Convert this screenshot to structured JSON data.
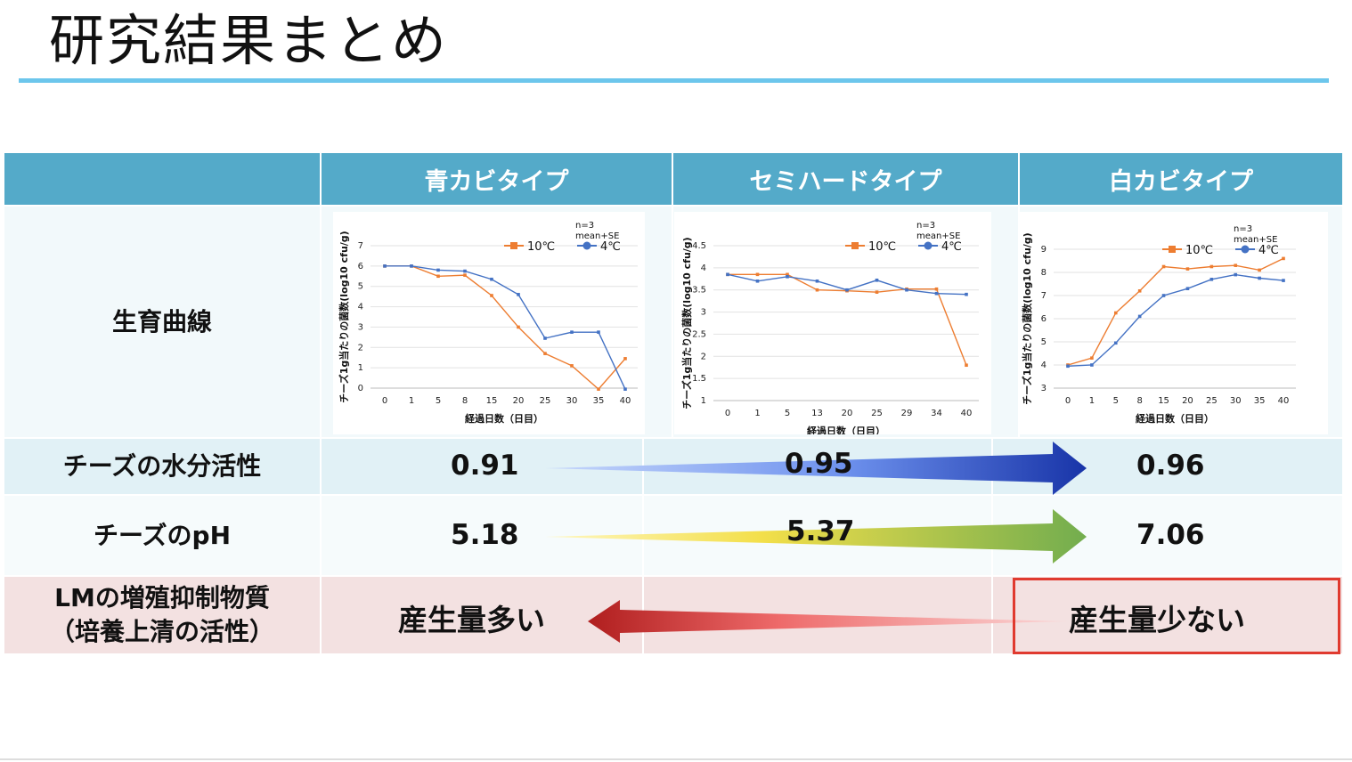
{
  "title": "研究結果まとめ",
  "columns": [
    "青カビタイプ",
    "セミハードタイプ",
    "白カビタイプ"
  ],
  "rows": {
    "growth": "生育曲線",
    "aw": "チーズの水分活性",
    "ph": "チーズのpH",
    "lm": [
      "LMの増殖抑制物質",
      "（培養上清の活性）"
    ]
  },
  "aw_values": [
    "0.91",
    "0.95",
    "0.96"
  ],
  "ph_values": [
    "5.18",
    "5.37",
    "7.06"
  ],
  "lm_values": [
    "産生量多い",
    "産生量少ない"
  ],
  "colors": {
    "header": "#54aac9",
    "series_10c": "#ed7d31",
    "series_4c": "#4472c4",
    "highlight": "#e03a2f"
  },
  "chart_data": [
    {
      "type": "line",
      "panel": "青カビタイプ",
      "x": [
        "0",
        "1",
        "5",
        "8",
        "15",
        "20",
        "25",
        "30",
        "35",
        "40"
      ],
      "xlabel": "経過日数（日目）",
      "ylabel": "チーズ1g当たりの菌数(log10 cfu/g)",
      "ylim": [
        0,
        7
      ],
      "yticks": [
        0,
        1,
        2,
        3,
        4,
        5,
        6,
        7
      ],
      "note": [
        "n=3",
        "mean+SE"
      ],
      "legend": "top-right",
      "series": [
        {
          "name": "10℃",
          "values": [
            6.0,
            6.0,
            5.5,
            5.55,
            4.55,
            3.0,
            1.7,
            1.1,
            -0.05,
            1.45
          ]
        },
        {
          "name": "4℃",
          "values": [
            6.0,
            6.0,
            5.8,
            5.75,
            5.35,
            4.6,
            2.45,
            2.75,
            2.75,
            -0.05
          ]
        }
      ]
    },
    {
      "type": "line",
      "panel": "セミハードタイプ",
      "x": [
        "0",
        "1",
        "5",
        "13",
        "20",
        "25",
        "29",
        "34",
        "40"
      ],
      "xlabel": "経過日数（日目）",
      "ylabel": "チーズ1g当たりの菌数(log10 cfu/g)",
      "ylim": [
        1,
        4.5
      ],
      "yticks": [
        1,
        1.5,
        2,
        2.5,
        3,
        3.5,
        4,
        4.5
      ],
      "note": [
        "n=3",
        "mean+SE"
      ],
      "legend": "top-right",
      "series": [
        {
          "name": "10℃",
          "values": [
            3.85,
            3.85,
            3.85,
            3.5,
            3.48,
            3.45,
            3.52,
            3.52,
            1.8
          ]
        },
        {
          "name": "4℃",
          "values": [
            3.85,
            3.7,
            3.8,
            3.7,
            3.5,
            3.72,
            3.5,
            3.42,
            3.4
          ]
        }
      ]
    },
    {
      "type": "line",
      "panel": "白カビタイプ",
      "x": [
        "0",
        "1",
        "5",
        "8",
        "15",
        "20",
        "25",
        "30",
        "35",
        "40"
      ],
      "xlabel": "経過日数（日目）",
      "ylabel": "チーズ1g当たりの菌数(log10 cfu/g)",
      "ylim": [
        3,
        9
      ],
      "yticks": [
        3,
        4,
        5,
        6,
        7,
        8,
        9
      ],
      "note": [
        "n=3",
        "mean+SE"
      ],
      "legend": "top-right",
      "series": [
        {
          "name": "10℃",
          "values": [
            4.0,
            4.3,
            6.25,
            7.2,
            8.25,
            8.15,
            8.25,
            8.3,
            8.1,
            8.6
          ]
        },
        {
          "name": "4℃",
          "values": [
            3.95,
            4.0,
            4.95,
            6.1,
            7.0,
            7.3,
            7.7,
            7.9,
            7.75,
            7.65
          ]
        }
      ]
    }
  ]
}
